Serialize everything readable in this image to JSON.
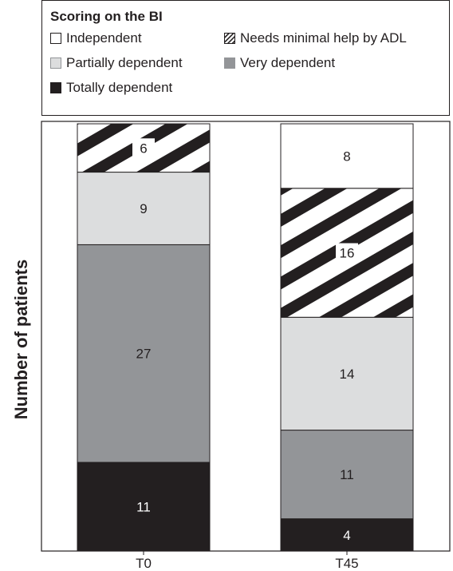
{
  "chart_data": {
    "type": "bar",
    "stacked": true,
    "title": "",
    "xlabel": "",
    "ylabel": "Number of patients",
    "categories": [
      "T0",
      "T45"
    ],
    "legend_title": "Scoring on the BI",
    "legend_position": "top",
    "series": [
      {
        "name": "Totally dependent",
        "values": [
          11,
          4
        ],
        "color": "#231f20",
        "pattern": "solid"
      },
      {
        "name": "Very dependent",
        "values": [
          27,
          11
        ],
        "color": "#939598",
        "pattern": "solid"
      },
      {
        "name": "Partially dependent",
        "values": [
          9,
          14
        ],
        "color": "#dcddde",
        "pattern": "solid"
      },
      {
        "name": "Needs minimal help by ADL",
        "values": [
          6,
          16
        ],
        "color": "#231f20",
        "pattern": "diagonal-stripes"
      },
      {
        "name": "Independent",
        "values": [
          0,
          8
        ],
        "color": "#ffffff",
        "pattern": "solid"
      }
    ],
    "label_colors": [
      "#ffffff",
      "#231f20",
      "#231f20",
      "#231f20",
      "#231f20"
    ],
    "grid": false,
    "yaxis_ticks": false
  },
  "legend": {
    "title": "Scoring on the BI",
    "items": [
      {
        "label": "Independent",
        "icon": "white-square-icon"
      },
      {
        "label": "Needs minimal help by ADL",
        "icon": "hatched-square-icon"
      },
      {
        "label": "Partially dependent",
        "icon": "light-gray-square-icon"
      },
      {
        "label": "Very dependent",
        "icon": "gray-square-icon"
      },
      {
        "label": "Totally dependent",
        "icon": "black-square-icon"
      }
    ]
  }
}
